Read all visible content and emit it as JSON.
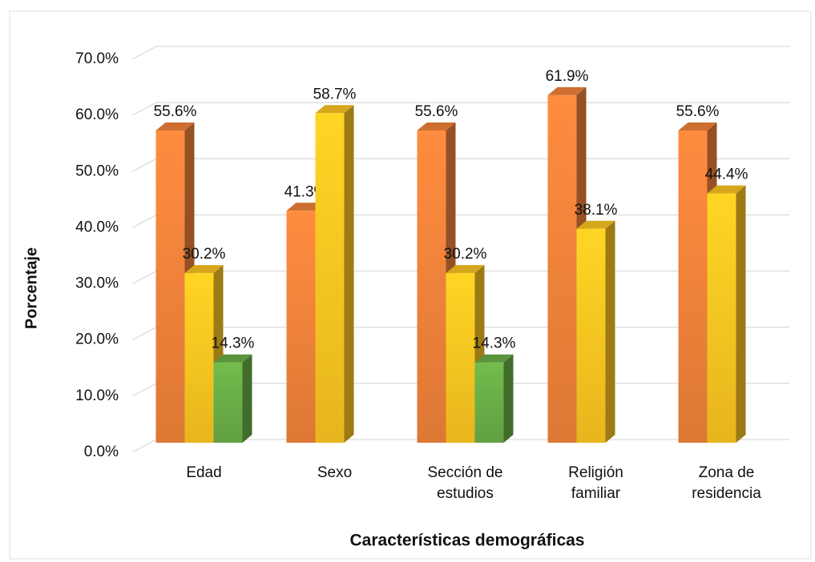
{
  "chart_data": {
    "type": "bar3d",
    "y_axis_label": "Porcentaje",
    "x_axis_label": "Características demográficas",
    "categories": [
      "Edad",
      "Sexo",
      "Sección de estudios",
      "Religión familiar",
      "Zona de residencia"
    ],
    "series": [
      {
        "color": "#f0823a",
        "values": [
          55.6,
          41.3,
          55.6,
          61.9,
          55.6
        ],
        "value_labels": [
          "55.6%",
          "41.3%",
          "55.6%",
          "61.9%",
          "55.6%"
        ]
      },
      {
        "color": "#fcc521",
        "values": [
          30.2,
          58.7,
          30.2,
          38.1,
          44.4
        ],
        "value_labels": [
          "30.2%",
          "58.7%",
          "30.2%",
          "38.1%",
          "44.4%"
        ]
      },
      {
        "color": "#6aae47",
        "values": [
          14.3,
          null,
          14.3,
          null,
          null
        ],
        "value_labels": [
          "14.3%",
          null,
          "14.3%",
          null,
          null
        ]
      }
    ],
    "ylim": [
      0,
      70
    ],
    "yticks": [
      {
        "value": 0,
        "label": "0.0%"
      },
      {
        "value": 10,
        "label": "10.0%"
      },
      {
        "value": 20,
        "label": "20.0%"
      },
      {
        "value": 30,
        "label": "30.0%"
      },
      {
        "value": 40,
        "label": "40.0%"
      },
      {
        "value": 50,
        "label": "50.0%"
      },
      {
        "value": 60,
        "label": "60.0%"
      },
      {
        "value": 70,
        "label": "70.0%"
      }
    ],
    "grid": true
  }
}
